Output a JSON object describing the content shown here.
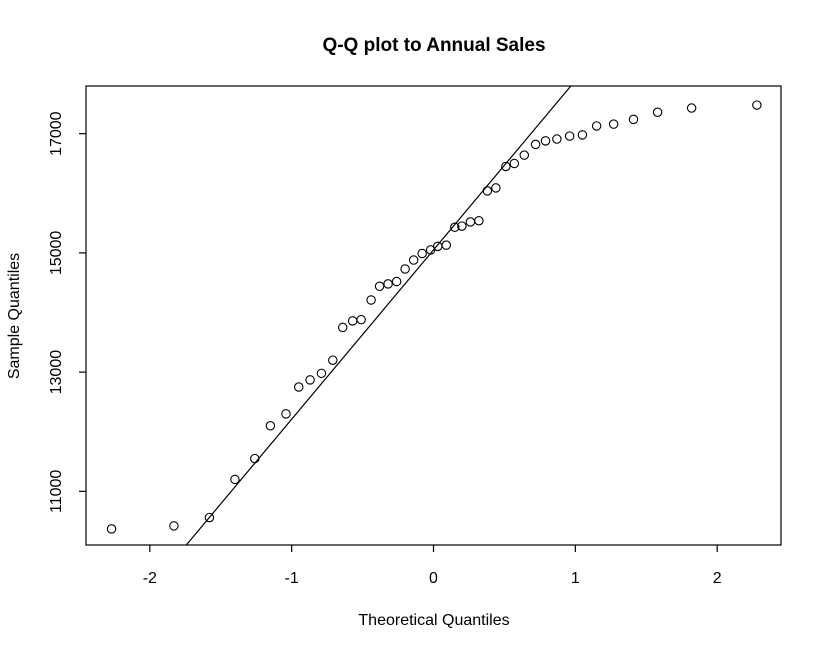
{
  "chart_data": {
    "type": "scatter",
    "title": "Q-Q plot to Annual Sales",
    "xlabel": "Theoretical Quantiles",
    "ylabel": "Sample Quantiles",
    "xlim": [
      -2.45,
      2.45
    ],
    "ylim": [
      10100,
      17800
    ],
    "x_ticks": [
      -2,
      -1,
      0,
      1,
      2
    ],
    "x_tick_labels": [
      "-2",
      "-1",
      "0",
      "1",
      "2"
    ],
    "y_ticks": [
      11000,
      13000,
      15000,
      17000
    ],
    "y_tick_labels": [
      "11000",
      "13000",
      "15000",
      "17000"
    ],
    "grid": false,
    "legend": "none",
    "colors": {
      "points": "#000000",
      "line": "#000000",
      "frame": "#000000",
      "background": "#ffffff"
    },
    "reference_line": {
      "type": "qqline",
      "slope": 2840,
      "intercept": 15050
    },
    "series": [
      {
        "points": [
          [
            -2.27,
            10370
          ],
          [
            -1.83,
            10420
          ],
          [
            -1.58,
            10560
          ],
          [
            -1.4,
            11200
          ],
          [
            -1.26,
            11550
          ],
          [
            -1.15,
            12100
          ],
          [
            -1.04,
            12300
          ],
          [
            -0.95,
            12750
          ],
          [
            -0.87,
            12870
          ],
          [
            -0.79,
            12980
          ],
          [
            -0.71,
            13200
          ],
          [
            -0.64,
            13750
          ],
          [
            -0.57,
            13860
          ],
          [
            -0.51,
            13880
          ],
          [
            -0.44,
            14210
          ],
          [
            -0.38,
            14440
          ],
          [
            -0.32,
            14480
          ],
          [
            -0.26,
            14520
          ],
          [
            -0.2,
            14730
          ],
          [
            -0.14,
            14880
          ],
          [
            -0.08,
            14990
          ],
          [
            -0.02,
            15050
          ],
          [
            0.03,
            15110
          ],
          [
            0.09,
            15130
          ],
          [
            0.15,
            15430
          ],
          [
            0.2,
            15450
          ],
          [
            0.26,
            15520
          ],
          [
            0.32,
            15540
          ],
          [
            0.38,
            16040
          ],
          [
            0.44,
            16090
          ],
          [
            0.51,
            16450
          ],
          [
            0.57,
            16500
          ],
          [
            0.64,
            16640
          ],
          [
            0.72,
            16820
          ],
          [
            0.79,
            16880
          ],
          [
            0.87,
            16910
          ],
          [
            0.96,
            16960
          ],
          [
            1.05,
            16980
          ],
          [
            1.15,
            17130
          ],
          [
            1.27,
            17160
          ],
          [
            1.41,
            17240
          ],
          [
            1.58,
            17360
          ],
          [
            1.82,
            17430
          ],
          [
            2.28,
            17480
          ]
        ]
      }
    ]
  }
}
